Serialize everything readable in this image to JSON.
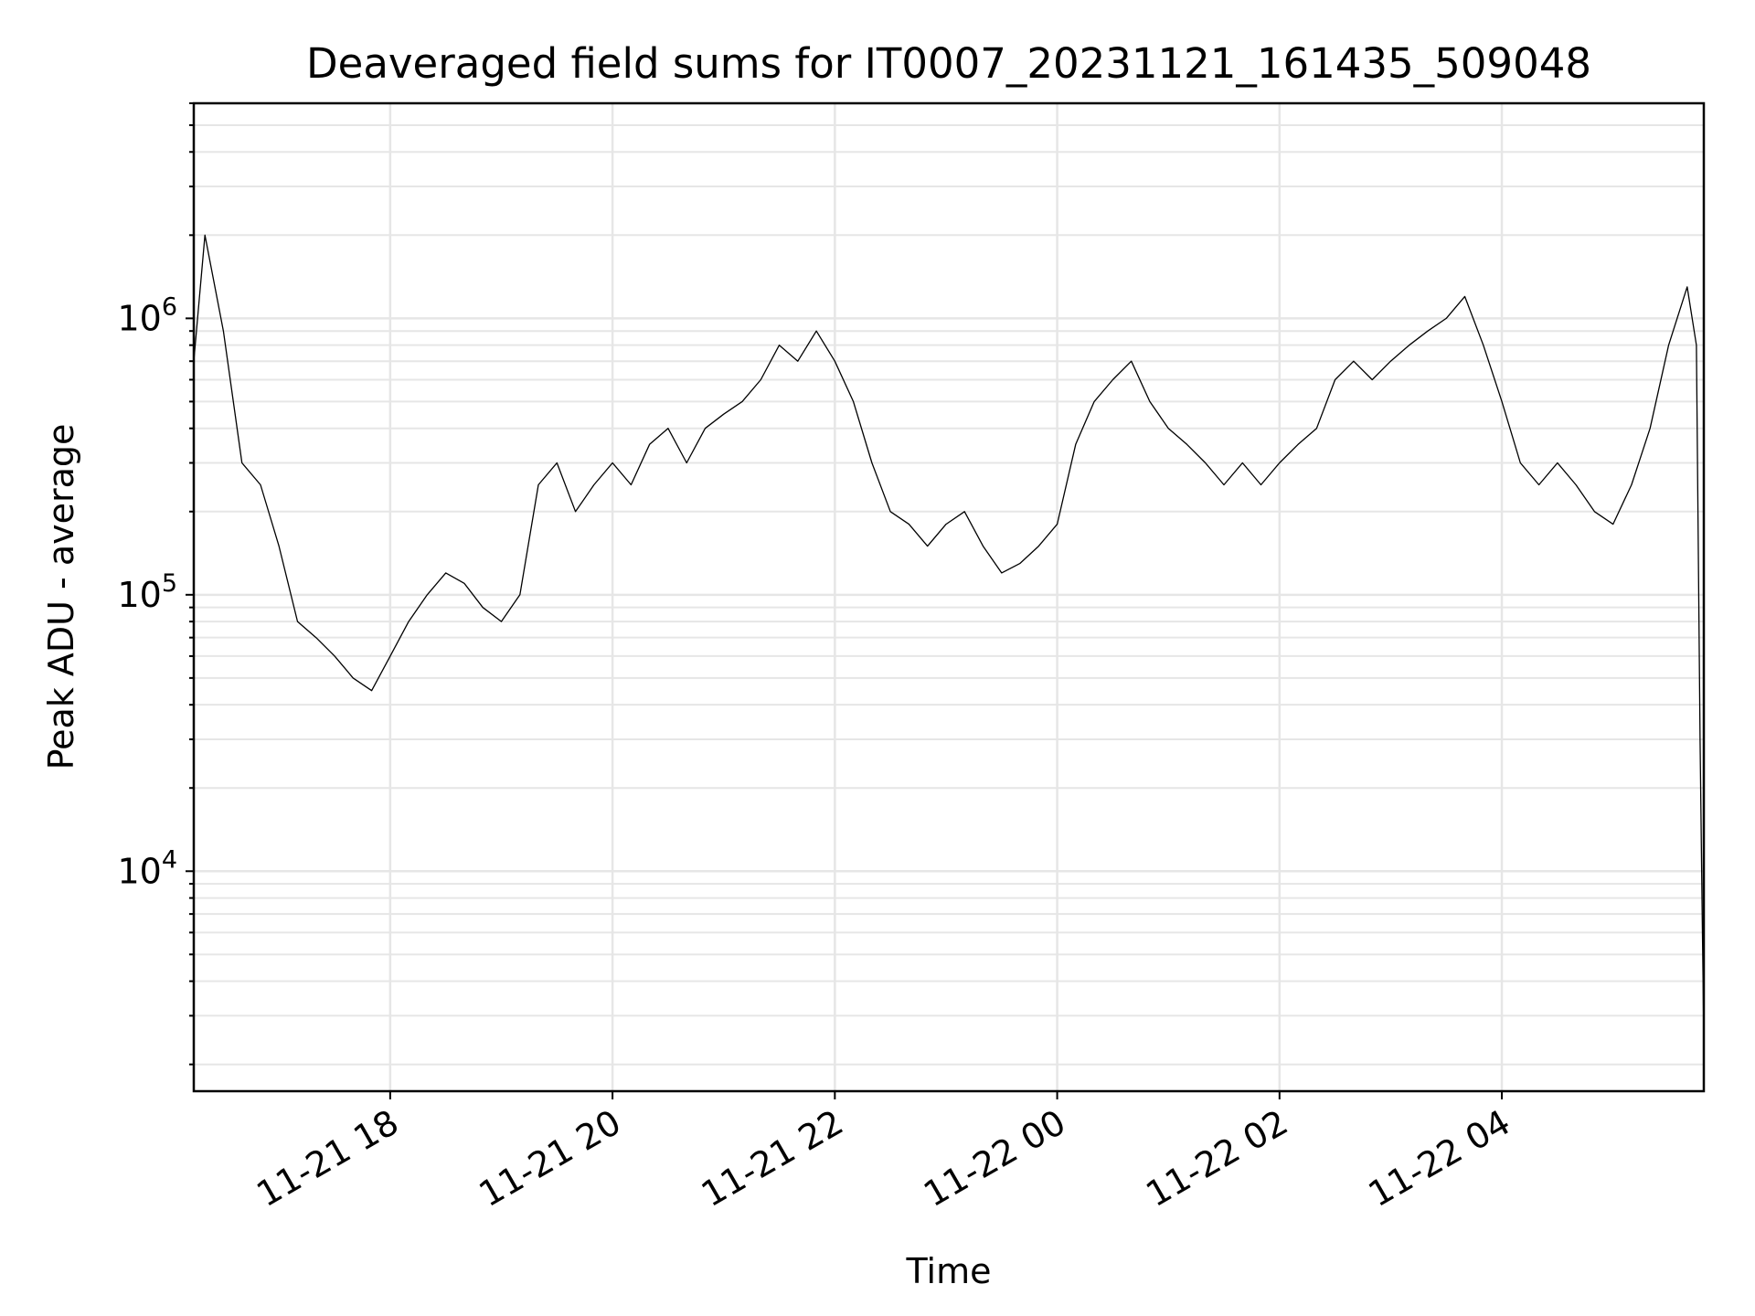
{
  "chart_data": {
    "type": "line",
    "title": "Deaveraged field sums for IT0007_20231121_161435_509048",
    "xlabel": "Time",
    "ylabel": "Peak ADU - average",
    "yscale": "log",
    "grid": true,
    "xlim": [
      "2023-11-21T16:14",
      "2023-11-22T05:49"
    ],
    "ylim": [
      1600,
      6000000
    ],
    "x_ticks": [
      {
        "value": "2023-11-21T18:00",
        "label": "11-21 18"
      },
      {
        "value": "2023-11-21T20:00",
        "label": "11-21 20"
      },
      {
        "value": "2023-11-21T22:00",
        "label": "11-21 22"
      },
      {
        "value": "2023-11-22T00:00",
        "label": "11-22 00"
      },
      {
        "value": "2023-11-22T02:00",
        "label": "11-22 02"
      },
      {
        "value": "2023-11-22T04:00",
        "label": "11-22 04"
      }
    ],
    "y_ticks": [
      {
        "value": 10000,
        "base": "10",
        "exp": "4"
      },
      {
        "value": 100000,
        "base": "10",
        "exp": "5"
      },
      {
        "value": 1000000,
        "base": "10",
        "exp": "6"
      }
    ],
    "series": [
      {
        "color": "#000000",
        "x": [
          "2023-11-21T16:14",
          "2023-11-21T16:20",
          "2023-11-21T16:30",
          "2023-11-21T16:40",
          "2023-11-21T16:50",
          "2023-11-21T17:00",
          "2023-11-21T17:10",
          "2023-11-21T17:20",
          "2023-11-21T17:30",
          "2023-11-21T17:40",
          "2023-11-21T17:50",
          "2023-11-21T18:00",
          "2023-11-21T18:10",
          "2023-11-21T18:20",
          "2023-11-21T18:30",
          "2023-11-21T18:40",
          "2023-11-21T18:50",
          "2023-11-21T19:00",
          "2023-11-21T19:10",
          "2023-11-21T19:20",
          "2023-11-21T19:30",
          "2023-11-21T19:40",
          "2023-11-21T19:50",
          "2023-11-21T20:00",
          "2023-11-21T20:10",
          "2023-11-21T20:20",
          "2023-11-21T20:30",
          "2023-11-21T20:40",
          "2023-11-21T20:50",
          "2023-11-21T21:00",
          "2023-11-21T21:10",
          "2023-11-21T21:20",
          "2023-11-21T21:30",
          "2023-11-21T21:40",
          "2023-11-21T21:50",
          "2023-11-21T22:00",
          "2023-11-21T22:10",
          "2023-11-21T22:20",
          "2023-11-21T22:30",
          "2023-11-21T22:40",
          "2023-11-21T22:50",
          "2023-11-21T23:00",
          "2023-11-21T23:10",
          "2023-11-21T23:20",
          "2023-11-21T23:30",
          "2023-11-21T23:40",
          "2023-11-21T23:50",
          "2023-11-22T00:00",
          "2023-11-22T00:10",
          "2023-11-22T00:20",
          "2023-11-22T00:30",
          "2023-11-22T00:40",
          "2023-11-22T00:50",
          "2023-11-22T01:00",
          "2023-11-22T01:10",
          "2023-11-22T01:20",
          "2023-11-22T01:30",
          "2023-11-22T01:40",
          "2023-11-22T01:50",
          "2023-11-22T02:00",
          "2023-11-22T02:10",
          "2023-11-22T02:20",
          "2023-11-22T02:30",
          "2023-11-22T02:40",
          "2023-11-22T02:50",
          "2023-11-22T03:00",
          "2023-11-22T03:10",
          "2023-11-22T03:20",
          "2023-11-22T03:30",
          "2023-11-22T03:40",
          "2023-11-22T03:50",
          "2023-11-22T04:00",
          "2023-11-22T04:10",
          "2023-11-22T04:20",
          "2023-11-22T04:30",
          "2023-11-22T04:40",
          "2023-11-22T04:50",
          "2023-11-22T05:00",
          "2023-11-22T05:10",
          "2023-11-22T05:20",
          "2023-11-22T05:30",
          "2023-11-22T05:40",
          "2023-11-22T05:45",
          "2023-11-22T05:47",
          "2023-11-22T05:48",
          "2023-11-22T05:49"
        ],
        "y": [
          700000,
          2000000,
          900000,
          300000,
          250000,
          150000,
          80000,
          70000,
          60000,
          50000,
          45000,
          60000,
          80000,
          100000,
          120000,
          110000,
          90000,
          80000,
          100000,
          250000,
          300000,
          200000,
          250000,
          300000,
          250000,
          350000,
          400000,
          300000,
          400000,
          450000,
          500000,
          600000,
          800000,
          700000,
          900000,
          700000,
          500000,
          300000,
          200000,
          180000,
          150000,
          180000,
          200000,
          150000,
          120000,
          130000,
          150000,
          180000,
          350000,
          500000,
          600000,
          700000,
          500000,
          400000,
          350000,
          300000,
          250000,
          300000,
          250000,
          300000,
          350000,
          400000,
          600000,
          700000,
          600000,
          700000,
          800000,
          900000,
          1000000,
          1200000,
          800000,
          500000,
          300000,
          250000,
          300000,
          250000,
          200000,
          180000,
          250000,
          400000,
          800000,
          1300000,
          800000,
          30000,
          8000,
          2500
        ]
      }
    ]
  }
}
